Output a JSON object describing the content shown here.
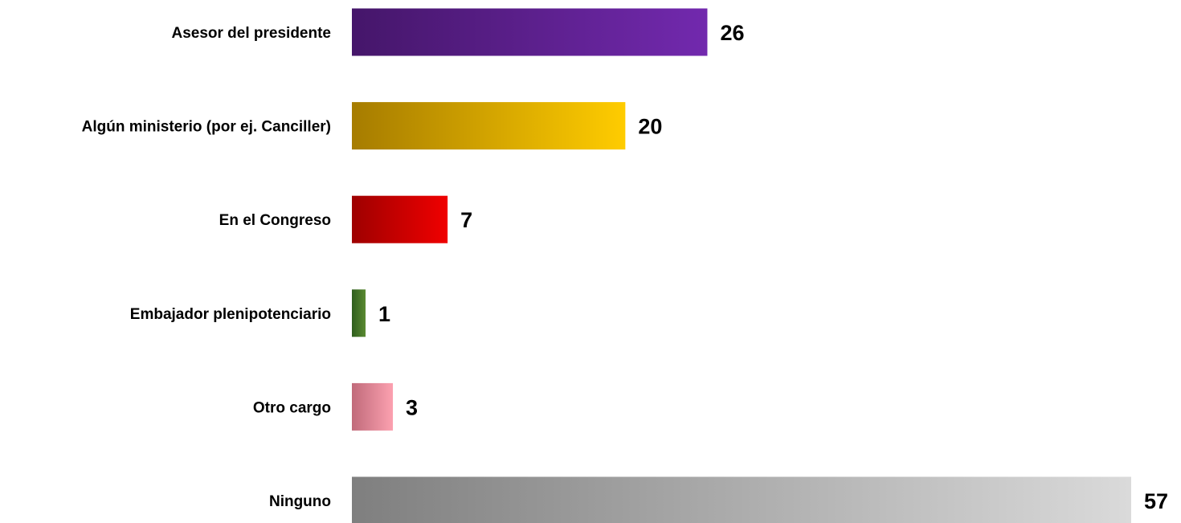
{
  "chart_data": {
    "type": "bar",
    "orientation": "horizontal",
    "categories": [
      "Asesor del presidente",
      "Algún ministerio (por ej. Canciller)",
      "En el Congreso",
      "Embajador plenipotenciario",
      "Otro cargo",
      "Ninguno"
    ],
    "values": [
      26,
      20,
      7,
      1,
      3,
      57
    ],
    "data_labels": [
      "26",
      "20",
      "7",
      "1",
      "3",
      "57"
    ],
    "title": "",
    "xlabel": "",
    "ylabel": "",
    "xlim": [
      0,
      57
    ],
    "grid": false,
    "legend": "none",
    "colors": [
      {
        "start": "#45166a",
        "end": "#7229ae"
      },
      {
        "start": "#a67c00",
        "end": "#ffcc00"
      },
      {
        "start": "#9e0000",
        "end": "#f00000"
      },
      {
        "start": "#2f5e1d",
        "end": "#5a8a32"
      },
      {
        "start": "#c06a7a",
        "end": "#fca1b0"
      },
      {
        "start": "#7f7f7f",
        "end": "#dadada"
      }
    ]
  }
}
